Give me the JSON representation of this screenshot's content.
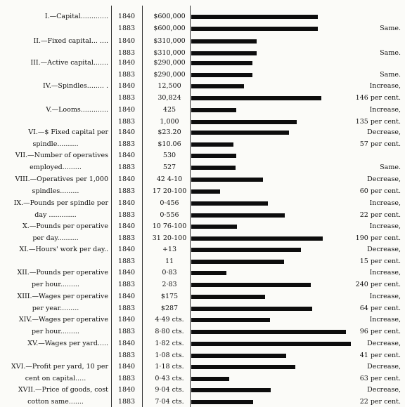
{
  "chart_data": {
    "type": "bar",
    "title": "",
    "xlabel": "",
    "ylabel": "",
    "rows": [
      {
        "label_lines": [
          "I.—Capital............."
        ],
        "years": [
          "1840",
          "1883"
        ],
        "values_text": [
          "$600,000",
          "$600,000"
        ],
        "values": [
          600000,
          600000
        ],
        "bar": [
          0.6,
          0.6
        ],
        "note_lines": [
          "",
          "Same."
        ]
      },
      {
        "label_lines": [
          "II.—Fixed capital... ...."
        ],
        "years": [
          "1840",
          "1883"
        ],
        "values_text": [
          "$310,000",
          "$310,000"
        ],
        "values": [
          310000,
          310000
        ],
        "bar": [
          0.31,
          0.31
        ],
        "note_lines": [
          "",
          "Same."
        ]
      },
      {
        "label_lines": [
          "III.—Active capital......."
        ],
        "years": [
          "1840",
          "1883"
        ],
        "values_text": [
          "$290,000",
          "$290,000"
        ],
        "values": [
          290000,
          290000
        ],
        "bar": [
          0.29,
          0.29
        ],
        "note_lines": [
          "",
          "Same."
        ]
      },
      {
        "label_lines": [
          "IV.—Spindles........ ."
        ],
        "years": [
          "1840",
          "1883"
        ],
        "values_text": [
          "12,500",
          "30,824"
        ],
        "values": [
          12500,
          30824
        ],
        "bar": [
          0.25,
          0.6165
        ],
        "note_lines": [
          "Increase,",
          "146 per cent."
        ]
      },
      {
        "label_lines": [
          "V.—Looms............."
        ],
        "years": [
          "1840",
          "1883"
        ],
        "values_text": [
          "425",
          "1,000"
        ],
        "values": [
          425,
          1000
        ],
        "bar": [
          0.2125,
          0.5
        ],
        "note_lines": [
          "Increase,",
          "135 per cent."
        ]
      },
      {
        "label_lines": [
          "VI.—$ Fixed capital per",
          "spindle.........."
        ],
        "years": [
          "1840",
          "1883"
        ],
        "values_text": [
          "$23.20",
          "$10.06"
        ],
        "values": [
          23.2,
          10.06
        ],
        "bar": [
          0.464,
          0.2012
        ],
        "note_lines": [
          "Decrease,",
          "57 per cent."
        ]
      },
      {
        "label_lines": [
          "VII.—Number of operatives",
          "employed........."
        ],
        "years": [
          "1840",
          "1883"
        ],
        "values_text": [
          "530",
          "527"
        ],
        "values": [
          530,
          527
        ],
        "bar": [
          0.212,
          0.2108
        ],
        "note_lines": [
          "",
          "Same."
        ]
      },
      {
        "label_lines": [
          "VIII.—Operatives per 1,000",
          "spindles........."
        ],
        "years": [
          "1840",
          "1883"
        ],
        "values_text": [
          "42 4-10",
          "17 20-100"
        ],
        "values": [
          42.4,
          17.2
        ],
        "bar": [
          0.339,
          0.1376
        ],
        "note_lines": [
          "Decrease,",
          "60 per cent."
        ]
      },
      {
        "label_lines": [
          "IX.—Pounds per spindle per",
          "day ............."
        ],
        "years": [
          "1840",
          "1883"
        ],
        "values_text": [
          "0·456",
          "0·556"
        ],
        "values": [
          0.456,
          0.556
        ],
        "bar": [
          0.3648,
          0.4448
        ],
        "note_lines": [
          "Increase,",
          "22 per cent."
        ]
      },
      {
        "label_lines": [
          "X.—Pounds per operative",
          "per day.........."
        ],
        "years": [
          "1840",
          "1883"
        ],
        "values_text": [
          "10 76-100",
          "31 20-100"
        ],
        "values": [
          10.76,
          31.2
        ],
        "bar": [
          0.2152,
          0.624
        ],
        "note_lines": [
          "Increase,",
          "190 per cent."
        ]
      },
      {
        "label_lines": [
          "XI.—Hours' work per day.."
        ],
        "years": [
          "1840",
          "1883"
        ],
        "values_text": [
          "+13",
          "11"
        ],
        "values": [
          13,
          11
        ],
        "bar": [
          0.52,
          0.44
        ],
        "note_lines": [
          "Decrease,",
          "15 per cent."
        ]
      },
      {
        "label_lines": [
          "XII.—Pounds per operative",
          "per hour........."
        ],
        "years": [
          "1840",
          "1883"
        ],
        "values_text": [
          "0·83",
          "2·83"
        ],
        "values": [
          0.83,
          2.83
        ],
        "bar": [
          0.166,
          0.566
        ],
        "note_lines": [
          "Increase,",
          "240 per cent."
        ]
      },
      {
        "label_lines": [
          "XIII.—Wages per operative",
          "per year........."
        ],
        "years": [
          "1840",
          "1883"
        ],
        "values_text": [
          "$175",
          "$287"
        ],
        "values": [
          175,
          287
        ],
        "bar": [
          0.35,
          0.574
        ],
        "note_lines": [
          "Increase,",
          "64 per cent."
        ]
      },
      {
        "label_lines": [
          "XIV.—Wages per operative",
          "per hour........."
        ],
        "years": [
          "1840",
          "1883"
        ],
        "values_text": [
          "4·49 cts.",
          "8·80 cts."
        ],
        "values": [
          4.49,
          8.8
        ],
        "bar": [
          0.3742,
          0.7333
        ],
        "note_lines": [
          "Increase,",
          "96 per cent."
        ]
      },
      {
        "label_lines": [
          "XV.—Wages per yard....."
        ],
        "years": [
          "1840",
          "1883"
        ],
        "values_text": [
          "1·82 cts.",
          "1·08 cts."
        ],
        "values": [
          1.82,
          1.08
        ],
        "bar": [
          0.7583,
          0.45
        ],
        "note_lines": [
          "Decrease,",
          "41 per cent."
        ]
      },
      {
        "label_lines": [
          "XVI.—Profit per yard, 10 per",
          "cent on capital....."
        ],
        "years": [
          "1840",
          "1883"
        ],
        "values_text": [
          "1·18 cts.",
          "0·43 cts."
        ],
        "values": [
          1.18,
          0.43
        ],
        "bar": [
          0.4917,
          0.1792
        ],
        "note_lines": [
          "Decrease,",
          "63 per cent."
        ]
      },
      {
        "label_lines": [
          "XVII.—Price of goods, cost",
          "cotton same......."
        ],
        "years": [
          "1840",
          "1883"
        ],
        "values_text": [
          "9·04 cts.",
          "7·04 cts."
        ],
        "values": [
          9.04,
          7.04
        ],
        "bar": [
          0.3767,
          0.2933
        ],
        "note_lines": [
          "Decrease,",
          "22 per cent."
        ]
      }
    ]
  }
}
